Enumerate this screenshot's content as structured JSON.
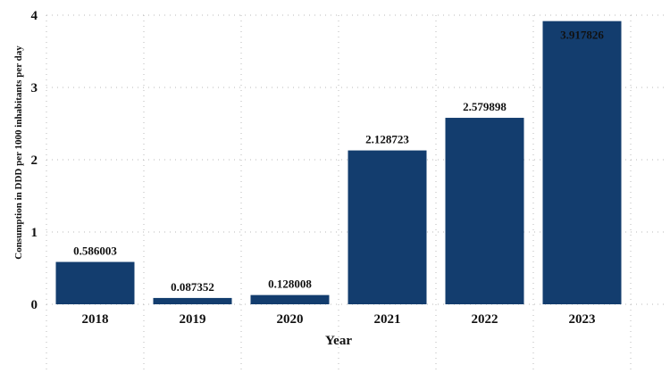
{
  "chart_data": {
    "type": "bar",
    "title": "",
    "xlabel": "Year",
    "ylabel": "Consumption in DDD per 1000 inhabitants per day",
    "categories": [
      "2018",
      "2019",
      "2020",
      "2021",
      "2022",
      "2023"
    ],
    "values": [
      0.586003,
      0.087352,
      0.128008,
      2.128723,
      2.579898,
      3.917826
    ],
    "data_labels": [
      "0.586003",
      "0.087352",
      "0.128008",
      "2.128723",
      "2.579898",
      "3.917826"
    ],
    "ylim": [
      0,
      4
    ],
    "yticks": [
      0,
      1,
      2,
      3,
      4
    ],
    "grid": true,
    "legend": "none",
    "bar_color": "#133d6e",
    "label_color": "#111111"
  }
}
